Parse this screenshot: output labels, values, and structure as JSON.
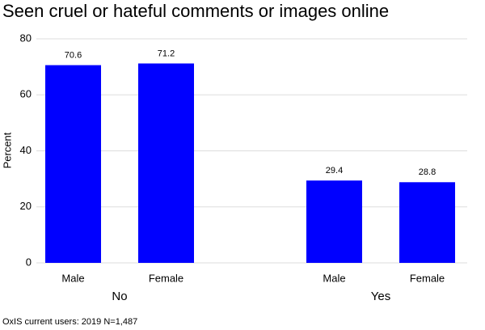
{
  "chart_data": {
    "type": "grouped_bar",
    "title": "Seen cruel or hateful comments or images online",
    "y_label": "Percent",
    "groups": [
      {
        "name": "No",
        "categories": [
          "Male",
          "Female"
        ],
        "values": [
          70.6,
          71.2
        ]
      },
      {
        "name": "Yes",
        "categories": [
          "Male",
          "Female"
        ],
        "values": [
          29.4,
          28.8
        ]
      }
    ],
    "color": "#0000ff",
    "ylim": [
      0,
      80
    ],
    "yticks": [
      0,
      20,
      40,
      60,
      80
    ],
    "grid": true,
    "caption": "OxIS current users: 2019 N=1,487"
  }
}
